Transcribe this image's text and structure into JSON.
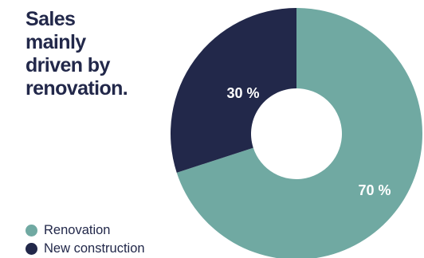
{
  "headline": {
    "lines": [
      "Sales",
      "mainly",
      "driven by",
      "renovation."
    ]
  },
  "colors": {
    "renovation": "#70a9a2",
    "new_construction": "#22284a",
    "text": "#22284a"
  },
  "chart_data": {
    "type": "pie",
    "title": "Sales mainly driven by renovation.",
    "hole": "donut",
    "start": "top, clockwise",
    "legend_position": "bottom-left",
    "series": [
      {
        "name": "Renovation",
        "value": 70,
        "label": "70 %",
        "color": "#70a9a2"
      },
      {
        "name": "New construction",
        "value": 30,
        "label": "30 %",
        "color": "#22284a"
      }
    ]
  }
}
